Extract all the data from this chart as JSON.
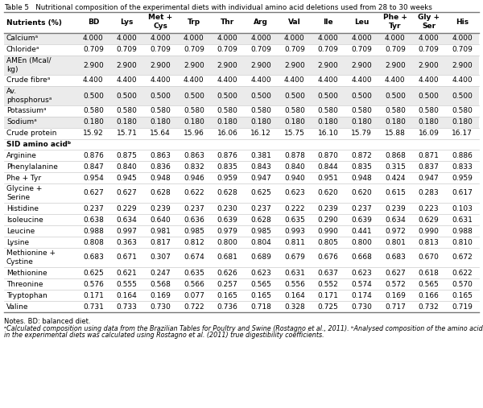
{
  "title": "Table 5   Nutritional composition of the experimental diets with individual amino acid deletions used from 28 to 30 weeks",
  "col_headers": [
    "Nutrients (%)",
    "BD",
    "Lys",
    "Met +\nCys",
    "Trp",
    "Thr",
    "Arg",
    "Val",
    "Ile",
    "Leu",
    "Phe +\nTyr",
    "Gly +\nSer",
    "His"
  ],
  "rows": [
    {
      "label": "Calciumᵃ",
      "values": [
        "4.000",
        "4.000",
        "4.000",
        "4.000",
        "4.000",
        "4.000",
        "4.000",
        "4.000",
        "4.000",
        "4.000",
        "4.000",
        "4.000"
      ],
      "shaded": true,
      "multiline": false
    },
    {
      "label": "Chlorideᵃ",
      "values": [
        "0.709",
        "0.709",
        "0.709",
        "0.709",
        "0.709",
        "0.709",
        "0.709",
        "0.709",
        "0.709",
        "0.709",
        "0.709",
        "0.709"
      ],
      "shaded": false,
      "multiline": false
    },
    {
      "label": "AMEn (Mcal/\nkg)",
      "values": [
        "2.900",
        "2.900",
        "2.900",
        "2.900",
        "2.900",
        "2.900",
        "2.900",
        "2.900",
        "2.900",
        "2.900",
        "2.900",
        "2.900"
      ],
      "shaded": true,
      "multiline": true
    },
    {
      "label": "Crude fibreᵃ",
      "values": [
        "4.400",
        "4.400",
        "4.400",
        "4.400",
        "4.400",
        "4.400",
        "4.400",
        "4.400",
        "4.400",
        "4.400",
        "4.400",
        "4.400"
      ],
      "shaded": false,
      "multiline": false
    },
    {
      "label": "Av.\nphosphorusᵃ",
      "values": [
        "0.500",
        "0.500",
        "0.500",
        "0.500",
        "0.500",
        "0.500",
        "0.500",
        "0.500",
        "0.500",
        "0.500",
        "0.500",
        "0.500"
      ],
      "shaded": true,
      "multiline": true
    },
    {
      "label": "Potassiumᵃ",
      "values": [
        "0.580",
        "0.580",
        "0.580",
        "0.580",
        "0.580",
        "0.580",
        "0.580",
        "0.580",
        "0.580",
        "0.580",
        "0.580",
        "0.580"
      ],
      "shaded": false,
      "multiline": false
    },
    {
      "label": "Sodiumᵃ",
      "values": [
        "0.180",
        "0.180",
        "0.180",
        "0.180",
        "0.180",
        "0.180",
        "0.180",
        "0.180",
        "0.180",
        "0.180",
        "0.180",
        "0.180"
      ],
      "shaded": true,
      "multiline": false
    },
    {
      "label": "Crude protein",
      "values": [
        "15.92",
        "15.71",
        "15.64",
        "15.96",
        "16.06",
        "16.12",
        "15.75",
        "16.10",
        "15.79",
        "15.88",
        "16.09",
        "16.17"
      ],
      "shaded": false,
      "multiline": false
    },
    {
      "label": "SID amino acidᵇ",
      "values": null,
      "shaded": false,
      "multiline": false,
      "section": true
    },
    {
      "label": "Arginine",
      "values": [
        "0.876",
        "0.875",
        "0.863",
        "0.863",
        "0.876",
        "0.381",
        "0.878",
        "0.870",
        "0.872",
        "0.868",
        "0.871",
        "0.886"
      ],
      "shaded": false,
      "multiline": false
    },
    {
      "label": "Phenylalanine",
      "values": [
        "0.847",
        "0.840",
        "0.836",
        "0.832",
        "0.835",
        "0.843",
        "0.840",
        "0.844",
        "0.835",
        "0.315",
        "0.837",
        "0.833"
      ],
      "shaded": false,
      "multiline": false
    },
    {
      "label": "Phe + Tyr",
      "values": [
        "0.954",
        "0.945",
        "0.948",
        "0.946",
        "0.959",
        "0.947",
        "0.940",
        "0.951",
        "0.948",
        "0.424",
        "0.947",
        "0.959"
      ],
      "shaded": false,
      "multiline": false
    },
    {
      "label": "Glycine +\nSerine",
      "values": [
        "0.627",
        "0.627",
        "0.628",
        "0.622",
        "0.628",
        "0.625",
        "0.623",
        "0.620",
        "0.620",
        "0.615",
        "0.283",
        "0.617"
      ],
      "shaded": false,
      "multiline": true
    },
    {
      "label": "Histidine",
      "values": [
        "0.237",
        "0.229",
        "0.239",
        "0.237",
        "0.230",
        "0.237",
        "0.222",
        "0.239",
        "0.237",
        "0.239",
        "0.223",
        "0.103"
      ],
      "shaded": false,
      "multiline": false
    },
    {
      "label": "Isoleucine",
      "values": [
        "0.638",
        "0.634",
        "0.640",
        "0.636",
        "0.639",
        "0.628",
        "0.635",
        "0.290",
        "0.639",
        "0.634",
        "0.629",
        "0.631"
      ],
      "shaded": false,
      "multiline": false
    },
    {
      "label": "Leucine",
      "values": [
        "0.988",
        "0.997",
        "0.981",
        "0.985",
        "0.979",
        "0.985",
        "0.993",
        "0.990",
        "0.441",
        "0.972",
        "0.990",
        "0.988"
      ],
      "shaded": false,
      "multiline": false
    },
    {
      "label": "Lysine",
      "values": [
        "0.808",
        "0.363",
        "0.817",
        "0.812",
        "0.800",
        "0.804",
        "0.811",
        "0.805",
        "0.800",
        "0.801",
        "0.813",
        "0.810"
      ],
      "shaded": false,
      "multiline": false
    },
    {
      "label": "Methionine +\nCystine",
      "values": [
        "0.683",
        "0.671",
        "0.307",
        "0.674",
        "0.681",
        "0.689",
        "0.679",
        "0.676",
        "0.668",
        "0.683",
        "0.670",
        "0.672"
      ],
      "shaded": false,
      "multiline": true
    },
    {
      "label": "Methionine",
      "values": [
        "0.625",
        "0.621",
        "0.247",
        "0.635",
        "0.626",
        "0.623",
        "0.631",
        "0.637",
        "0.623",
        "0.627",
        "0.618",
        "0.622"
      ],
      "shaded": false,
      "multiline": false
    },
    {
      "label": "Threonine",
      "values": [
        "0.576",
        "0.555",
        "0.568",
        "0.566",
        "0.257",
        "0.565",
        "0.556",
        "0.552",
        "0.574",
        "0.572",
        "0.565",
        "0.570"
      ],
      "shaded": false,
      "multiline": false
    },
    {
      "label": "Tryptophan",
      "values": [
        "0.171",
        "0.164",
        "0.169",
        "0.077",
        "0.165",
        "0.165",
        "0.164",
        "0.171",
        "0.174",
        "0.169",
        "0.166",
        "0.165"
      ],
      "shaded": false,
      "multiline": false
    },
    {
      "label": "Valine",
      "values": [
        "0.731",
        "0.733",
        "0.730",
        "0.722",
        "0.736",
        "0.718",
        "0.328",
        "0.725",
        "0.730",
        "0.717",
        "0.732",
        "0.719"
      ],
      "shaded": false,
      "multiline": false
    }
  ],
  "notes_line1": "Notes. BD: balanced diet.",
  "notes_line2": "ᵃCalculated composition using data from the Brazilian Tables for Poultry and Swine (Rostagno et al., 2011). ᵇAnalysed composition of the amino acids",
  "notes_line3": "in the experimental diets was calculated using Rostagno et al. (2011) true digestibility coefficients.",
  "bg_color": "#ffffff",
  "shaded_color": "#ebebeb",
  "text_color": "#000000",
  "line_color_heavy": "#777777",
  "line_color_light": "#cccccc"
}
